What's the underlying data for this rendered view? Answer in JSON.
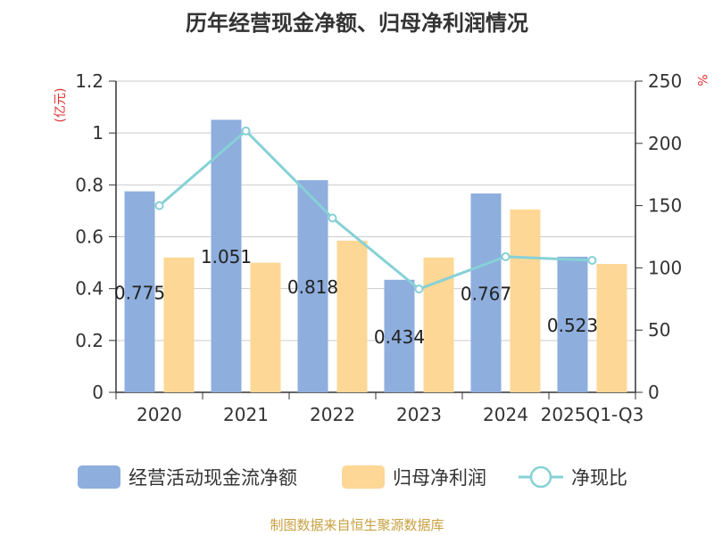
{
  "chart_data": {
    "type": "bar",
    "title": "历年经营现金净额、归母净利润情况",
    "categories": [
      "2020",
      "2021",
      "2022",
      "2023",
      "2024",
      "2025Q1-Q3"
    ],
    "series": [
      {
        "name": "经营活动现金流净额",
        "type": "bar",
        "axis": "left",
        "values": [
          0.775,
          1.051,
          0.818,
          0.434,
          0.767,
          0.523
        ],
        "labels": [
          "0.775",
          "1.051",
          "0.818",
          "0.434",
          "0.767",
          "0.523"
        ],
        "color": "#8eaedd"
      },
      {
        "name": "归母净利润",
        "type": "bar",
        "axis": "left",
        "values": [
          0.52,
          0.5,
          0.585,
          0.52,
          0.705,
          0.495
        ],
        "color": "#fdd795"
      },
      {
        "name": "净现比",
        "type": "line",
        "axis": "right",
        "values": [
          150,
          210,
          140,
          83,
          109,
          106
        ],
        "color": "#86d1d6"
      }
    ],
    "y_left": {
      "label": "(亿元)",
      "ylim": [
        0,
        1.2
      ],
      "ticks": [
        "0",
        "0.2",
        "0.4",
        "0.6",
        "0.8",
        "1",
        "1.2"
      ]
    },
    "y_right": {
      "label": "%",
      "ylim": [
        0,
        250
      ],
      "ticks": [
        "0",
        "50",
        "100",
        "150",
        "200",
        "250"
      ]
    },
    "grid": true,
    "legend": "bottom"
  },
  "colors": {
    "axis_unit": "#e03030",
    "footer": "#c8a040",
    "grid": "#cccccc"
  },
  "footer": "制图数据来自恒生聚源数据库"
}
